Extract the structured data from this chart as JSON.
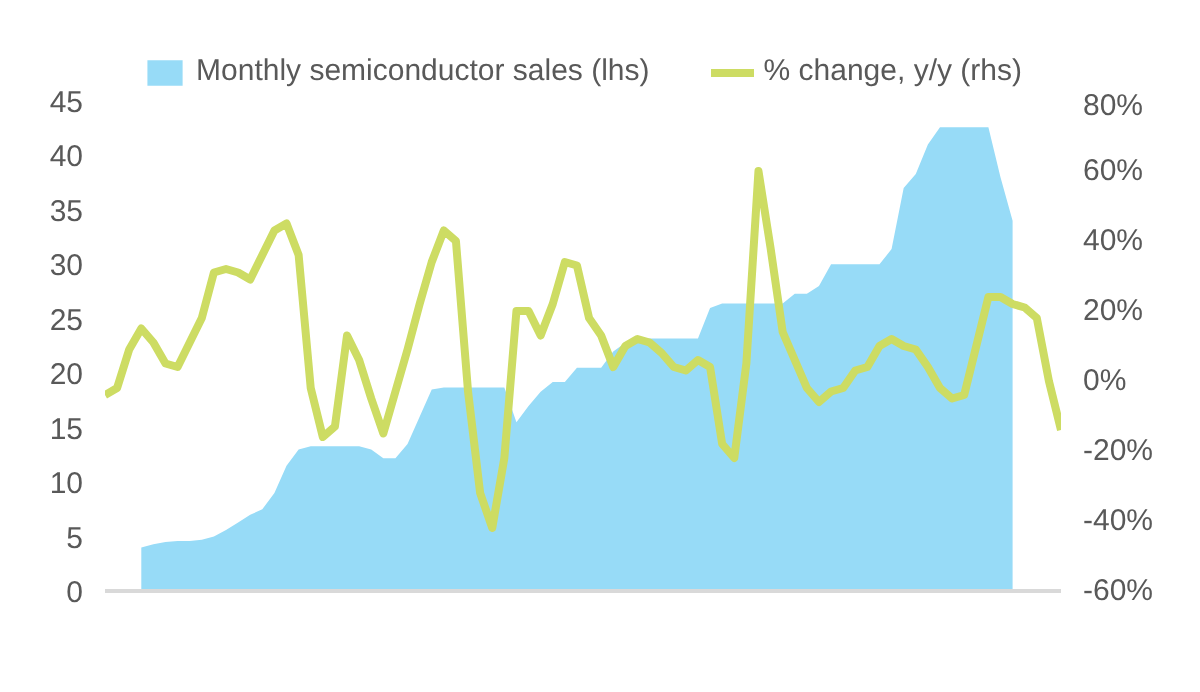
{
  "chart_data": {
    "type": "area",
    "categories": [
      null,
      null,
      null,
      null,
      null,
      null,
      null,
      null,
      null,
      null,
      null,
      null,
      null,
      null,
      null,
      null,
      null,
      null,
      null,
      null,
      null,
      null,
      null,
      null,
      null,
      null,
      null,
      null,
      null,
      null,
      null,
      null,
      null,
      null,
      null,
      null,
      null,
      null,
      null,
      null,
      null,
      null,
      null,
      null,
      null,
      null,
      null,
      null,
      null,
      null,
      null,
      null,
      null,
      null,
      null,
      null,
      null,
      null,
      null,
      null,
      null,
      null,
      null,
      null,
      null,
      null,
      null,
      null,
      null,
      null,
      null,
      null,
      null,
      null,
      null,
      null,
      null,
      null,
      null,
      null
    ],
    "series": [
      {
        "name": "Monthly semiconductor sales (lhs)",
        "color": "#97dbf7",
        "values": [
          null,
          null,
          null,
          4,
          4.3,
          4.5,
          4.6,
          4.6,
          4.7,
          5,
          5.6,
          6.3,
          7,
          7.5,
          9,
          11.5,
          13,
          13.3,
          13.3,
          13.3,
          13.3,
          13.3,
          13,
          12.2,
          12.2,
          13.5,
          16,
          18.5,
          18.7,
          18.7,
          18.7,
          18.7,
          18.7,
          18.7,
          15.5,
          17,
          18.3,
          19.2,
          19.2,
          20.5,
          20.5,
          20.5,
          22,
          22.8,
          23.2,
          23.2,
          23.2,
          23.2,
          23.2,
          23.2,
          26,
          26.4,
          26.4,
          26.4,
          26.4,
          26.4,
          26.4,
          27.3,
          27.3,
          28,
          30,
          30,
          30,
          30,
          30,
          31.4,
          37,
          38.3,
          41,
          42.6,
          42.6,
          42.6,
          42.6,
          42.6,
          38,
          34,
          null,
          null,
          null,
          null
        ]
      },
      {
        "name": "% change, y/y (rhs)",
        "type": "line",
        "axis": "y2",
        "color": "#cddc63",
        "values": [
          -4,
          -2,
          9,
          15,
          11,
          5,
          4,
          11,
          18,
          31,
          32,
          31,
          29,
          36,
          43,
          45,
          36,
          -2,
          -16,
          -13,
          13,
          6,
          -5,
          -15,
          -3,
          9,
          22,
          34,
          43,
          40,
          -3,
          -32,
          -42,
          -22,
          20,
          20,
          13,
          22,
          34,
          33,
          18,
          13,
          4,
          10,
          12,
          11,
          8,
          4,
          3,
          6,
          4,
          -18,
          -22,
          5,
          60,
          38,
          14,
          6,
          -2,
          -6,
          -3,
          -2,
          3,
          4,
          10,
          12,
          10,
          9,
          4,
          -2,
          -5,
          -4,
          10,
          24,
          24,
          22,
          21,
          18,
          0,
          -14
        ]
      }
    ],
    "ylim": [
      0,
      45
    ],
    "yticks": [
      0,
      5,
      10,
      15,
      20,
      25,
      30,
      35,
      40,
      45
    ],
    "y2lim": [
      -60,
      80
    ],
    "y2ticks": [
      {
        "value": -60,
        "label": "-60%"
      },
      {
        "value": -40,
        "label": "-40%"
      },
      {
        "value": -20,
        "label": "-20%"
      },
      {
        "value": 0,
        "label": "0%"
      },
      {
        "value": 20,
        "label": "20%"
      },
      {
        "value": 40,
        "label": "40%"
      },
      {
        "value": 60,
        "label": "60%"
      },
      {
        "value": 80,
        "label": "80%"
      }
    ],
    "legend": "top",
    "grid": false
  }
}
